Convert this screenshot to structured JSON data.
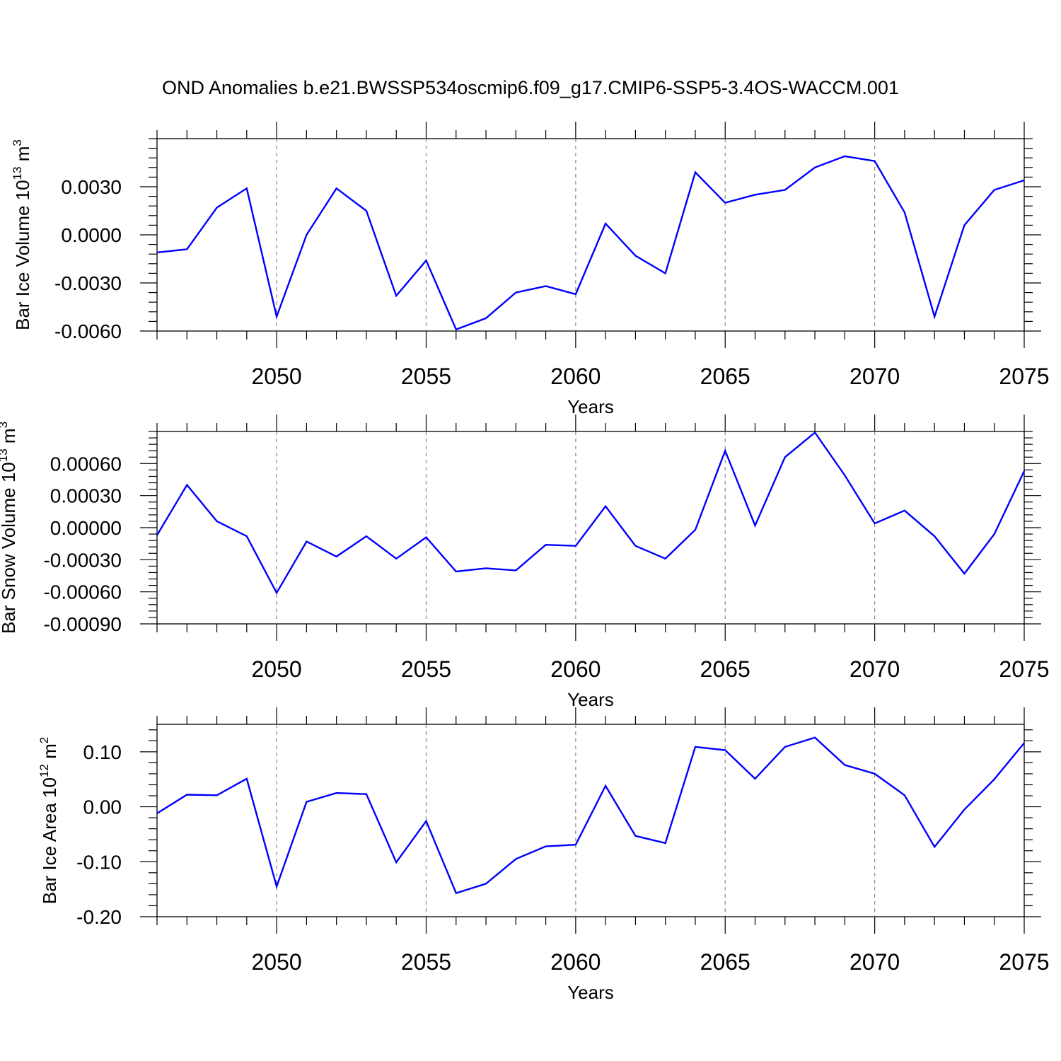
{
  "title": "OND Anomalies b.e21.BWSSP534oscmip6.f09_g17.CMIP6-SSP5-3.4OS-WACCM.001",
  "chart_data": [
    {
      "type": "line",
      "xlabel": "Years",
      "ylabel_base": "Bar Ice Volume 10",
      "ylabel_exp": "13",
      "ylabel_unit": " m",
      "ylabel_unit_exp": "3",
      "xlim": [
        2046,
        2075
      ],
      "ylim": [
        -0.006,
        0.006
      ],
      "major_x": [
        2050,
        2055,
        2060,
        2065,
        2070,
        2075
      ],
      "x_tick_labels": [
        "2050",
        "2055",
        "2060",
        "2065",
        "2070",
        "2075"
      ],
      "major_y": [
        -0.006,
        -0.003,
        0.0,
        0.003
      ],
      "y_tick_labels": [
        "-0.0060",
        "-0.0030",
        "0.0000",
        "0.0030"
      ],
      "grid_x": true,
      "color": "#0000ff",
      "x": [
        2046,
        2047,
        2048,
        2049,
        2050,
        2051,
        2052,
        2053,
        2054,
        2055,
        2056,
        2057,
        2058,
        2059,
        2060,
        2061,
        2062,
        2063,
        2064,
        2065,
        2066,
        2067,
        2068,
        2069,
        2070,
        2071,
        2072,
        2073,
        2074,
        2075
      ],
      "values": [
        -0.0011,
        -0.0009,
        0.0017,
        0.0029,
        -0.0051,
        0.0,
        0.0029,
        0.0015,
        -0.0038,
        -0.0016,
        -0.0059,
        -0.0052,
        -0.0036,
        -0.0032,
        -0.0037,
        0.0007,
        -0.0013,
        -0.0024,
        0.0039,
        0.002,
        0.0025,
        0.0028,
        0.0042,
        0.0049,
        0.0046,
        0.0014,
        -0.0051,
        0.0006,
        0.0028,
        0.0034
      ]
    },
    {
      "type": "line",
      "xlabel": "Years",
      "ylabel_base": "Bar Snow Volume 10",
      "ylabel_exp": "13",
      "ylabel_unit": " m",
      "ylabel_unit_exp": "3",
      "xlim": [
        2046,
        2075
      ],
      "ylim": [
        -0.0009,
        0.0009
      ],
      "major_x": [
        2050,
        2055,
        2060,
        2065,
        2070,
        2075
      ],
      "x_tick_labels": [
        "2050",
        "2055",
        "2060",
        "2065",
        "2070",
        "2075"
      ],
      "major_y": [
        -0.0009,
        -0.0006,
        -0.0003,
        0.0,
        0.0003,
        0.0006
      ],
      "y_tick_labels": [
        "-0.00090",
        "-0.00060",
        "-0.00030",
        "0.00000",
        "0.00030",
        "0.00060"
      ],
      "grid_x": true,
      "color": "#0000ff",
      "x": [
        2046,
        2047,
        2048,
        2049,
        2050,
        2051,
        2052,
        2053,
        2054,
        2055,
        2056,
        2057,
        2058,
        2059,
        2060,
        2061,
        2062,
        2063,
        2064,
        2065,
        2066,
        2067,
        2068,
        2069,
        2070,
        2071,
        2072,
        2073,
        2074,
        2075
      ],
      "values": [
        -7e-05,
        0.0004,
        6e-05,
        -8e-05,
        -0.00061,
        -0.00013,
        -0.00027,
        -8e-05,
        -0.00029,
        -9e-05,
        -0.00041,
        -0.00038,
        -0.0004,
        -0.00016,
        -0.00017,
        0.0002,
        -0.00017,
        -0.00029,
        -2e-05,
        0.00072,
        2e-05,
        0.00066,
        0.00089,
        0.00049,
        4e-05,
        0.00016,
        -8e-05,
        -0.00043,
        -6e-05,
        0.00053
      ]
    },
    {
      "type": "line",
      "xlabel": "Years",
      "ylabel_base": "Bar Ice Area 10",
      "ylabel_exp": "12",
      "ylabel_unit": " m",
      "ylabel_unit_exp": "2",
      "xlim": [
        2046,
        2075
      ],
      "ylim": [
        -0.2,
        0.15
      ],
      "major_x": [
        2050,
        2055,
        2060,
        2065,
        2070,
        2075
      ],
      "x_tick_labels": [
        "2050",
        "2055",
        "2060",
        "2065",
        "2070",
        "2075"
      ],
      "major_y": [
        -0.2,
        -0.1,
        0.0,
        0.1
      ],
      "y_tick_labels": [
        "-0.20",
        "-0.10",
        "0.00",
        "0.10"
      ],
      "grid_x": true,
      "color": "#0000ff",
      "x": [
        2046,
        2047,
        2048,
        2049,
        2050,
        2051,
        2052,
        2053,
        2054,
        2055,
        2056,
        2057,
        2058,
        2059,
        2060,
        2061,
        2062,
        2063,
        2064,
        2065,
        2066,
        2067,
        2068,
        2069,
        2070,
        2071,
        2072,
        2073,
        2074,
        2075
      ],
      "values": [
        -0.012,
        0.022,
        0.021,
        0.051,
        -0.145,
        0.009,
        0.025,
        0.023,
        -0.101,
        -0.026,
        -0.157,
        -0.14,
        -0.095,
        -0.072,
        -0.069,
        0.038,
        -0.053,
        -0.066,
        0.109,
        0.103,
        0.051,
        0.109,
        0.126,
        0.076,
        0.06,
        0.021,
        -0.073,
        -0.005,
        0.05,
        0.116
      ]
    }
  ]
}
